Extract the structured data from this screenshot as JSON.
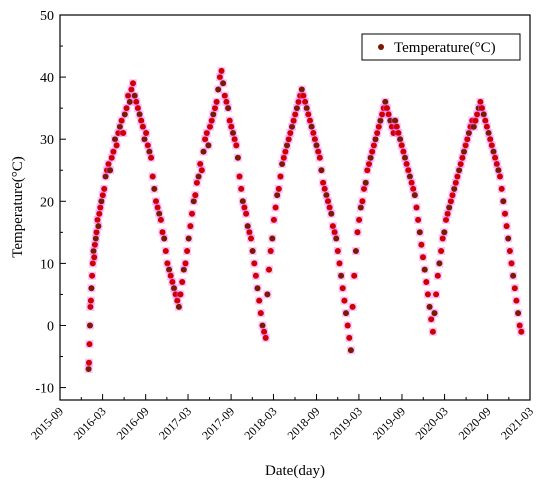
{
  "chart_data": {
    "type": "scatter",
    "xlabel": "Date(day)",
    "ylabel": "Temperature(°C)",
    "xlim": [
      "2015-09",
      "2021-03"
    ],
    "ylim": [
      -12,
      50
    ],
    "x_ticks": [
      "2015-09",
      "2016-03",
      "2016-09",
      "2017-03",
      "2017-09",
      "2018-03",
      "2018-09",
      "2019-03",
      "2019-09",
      "2020-03",
      "2020-09",
      "2021-03"
    ],
    "y_ticks": [
      -10,
      0,
      10,
      20,
      30,
      40,
      50
    ],
    "grid": false,
    "legend_position": "top-right",
    "colors": {
      "outer": "#ff66ff",
      "point": "#cc0000",
      "point_dark": "#7a1a00"
    },
    "series": [
      {
        "name": "Temperature(°C)",
        "points": [
          [
            "2016-01-01",
            -7
          ],
          [
            "2016-01-03",
            -6
          ],
          [
            "2016-01-05",
            -3
          ],
          [
            "2016-01-07",
            0
          ],
          [
            "2016-01-09",
            3
          ],
          [
            "2016-01-11",
            4
          ],
          [
            "2016-01-13",
            6
          ],
          [
            "2016-01-16",
            8
          ],
          [
            "2016-01-19",
            10
          ],
          [
            "2016-01-22",
            12
          ],
          [
            "2016-01-25",
            11
          ],
          [
            "2016-01-28",
            13
          ],
          [
            "2016-02-01",
            14
          ],
          [
            "2016-02-04",
            15
          ],
          [
            "2016-02-08",
            17
          ],
          [
            "2016-02-12",
            16
          ],
          [
            "2016-02-16",
            18
          ],
          [
            "2016-02-20",
            19
          ],
          [
            "2016-02-25",
            20
          ],
          [
            "2016-03-02",
            21
          ],
          [
            "2016-03-08",
            22
          ],
          [
            "2016-03-14",
            24
          ],
          [
            "2016-03-20",
            25
          ],
          [
            "2016-03-26",
            26
          ],
          [
            "2016-04-02",
            25
          ],
          [
            "2016-04-09",
            27
          ],
          [
            "2016-04-16",
            28
          ],
          [
            "2016-04-23",
            30
          ],
          [
            "2016-04-30",
            29
          ],
          [
            "2016-05-07",
            31
          ],
          [
            "2016-05-14",
            32
          ],
          [
            "2016-05-21",
            33
          ],
          [
            "2016-05-28",
            31
          ],
          [
            "2016-06-04",
            34
          ],
          [
            "2016-06-11",
            35
          ],
          [
            "2016-06-18",
            37
          ],
          [
            "2016-06-25",
            36
          ],
          [
            "2016-07-02",
            38
          ],
          [
            "2016-07-09",
            39
          ],
          [
            "2016-07-16",
            37
          ],
          [
            "2016-07-23",
            36
          ],
          [
            "2016-07-30",
            35
          ],
          [
            "2016-08-06",
            34
          ],
          [
            "2016-08-13",
            33
          ],
          [
            "2016-08-20",
            32
          ],
          [
            "2016-08-27",
            30
          ],
          [
            "2016-09-03",
            31
          ],
          [
            "2016-09-10",
            29
          ],
          [
            "2016-09-17",
            28
          ],
          [
            "2016-09-24",
            27
          ],
          [
            "2016-10-01",
            24
          ],
          [
            "2016-10-08",
            22
          ],
          [
            "2016-10-15",
            20
          ],
          [
            "2016-10-22",
            19
          ],
          [
            "2016-10-29",
            18
          ],
          [
            "2016-11-05",
            17
          ],
          [
            "2016-11-12",
            15
          ],
          [
            "2016-11-19",
            14
          ],
          [
            "2016-11-26",
            12
          ],
          [
            "2016-12-03",
            10
          ],
          [
            "2016-12-10",
            9
          ],
          [
            "2016-12-17",
            8
          ],
          [
            "2016-12-24",
            7
          ],
          [
            "2016-12-31",
            6
          ],
          [
            "2017-01-07",
            5
          ],
          [
            "2017-01-14",
            4
          ],
          [
            "2017-01-21",
            3
          ],
          [
            "2017-01-28",
            5
          ],
          [
            "2017-02-04",
            7
          ],
          [
            "2017-02-11",
            9
          ],
          [
            "2017-02-18",
            10
          ],
          [
            "2017-02-25",
            12
          ],
          [
            "2017-03-04",
            14
          ],
          [
            "2017-03-11",
            16
          ],
          [
            "2017-03-18",
            18
          ],
          [
            "2017-03-25",
            20
          ],
          [
            "2017-04-01",
            21
          ],
          [
            "2017-04-08",
            23
          ],
          [
            "2017-04-15",
            24
          ],
          [
            "2017-04-22",
            26
          ],
          [
            "2017-04-29",
            25
          ],
          [
            "2017-05-06",
            28
          ],
          [
            "2017-05-13",
            30
          ],
          [
            "2017-05-20",
            31
          ],
          [
            "2017-05-27",
            29
          ],
          [
            "2017-06-03",
            32
          ],
          [
            "2017-06-10",
            33
          ],
          [
            "2017-06-17",
            34
          ],
          [
            "2017-06-24",
            35
          ],
          [
            "2017-07-01",
            36
          ],
          [
            "2017-07-08",
            38
          ],
          [
            "2017-07-15",
            40
          ],
          [
            "2017-07-22",
            41
          ],
          [
            "2017-07-29",
            39
          ],
          [
            "2017-08-05",
            37
          ],
          [
            "2017-08-12",
            36
          ],
          [
            "2017-08-19",
            35
          ],
          [
            "2017-08-26",
            33
          ],
          [
            "2017-09-02",
            32
          ],
          [
            "2017-09-09",
            31
          ],
          [
            "2017-09-16",
            30
          ],
          [
            "2017-09-23",
            29
          ],
          [
            "2017-09-30",
            27
          ],
          [
            "2017-10-07",
            24
          ],
          [
            "2017-10-14",
            22
          ],
          [
            "2017-10-21",
            20
          ],
          [
            "2017-10-28",
            19
          ],
          [
            "2017-11-04",
            18
          ],
          [
            "2017-11-11",
            16
          ],
          [
            "2017-11-18",
            15
          ],
          [
            "2017-11-25",
            14
          ],
          [
            "2017-12-02",
            12
          ],
          [
            "2017-12-09",
            10
          ],
          [
            "2017-12-16",
            8
          ],
          [
            "2017-12-23",
            6
          ],
          [
            "2017-12-30",
            4
          ],
          [
            "2018-01-06",
            2
          ],
          [
            "2018-01-13",
            0
          ],
          [
            "2018-01-20",
            -1
          ],
          [
            "2018-01-27",
            -2
          ],
          [
            "2018-02-03",
            5
          ],
          [
            "2018-02-10",
            9
          ],
          [
            "2018-02-17",
            12
          ],
          [
            "2018-02-24",
            14
          ],
          [
            "2018-03-03",
            17
          ],
          [
            "2018-03-10",
            19
          ],
          [
            "2018-03-17",
            21
          ],
          [
            "2018-03-24",
            22
          ],
          [
            "2018-03-31",
            24
          ],
          [
            "2018-04-07",
            26
          ],
          [
            "2018-04-14",
            27
          ],
          [
            "2018-04-21",
            28
          ],
          [
            "2018-04-28",
            29
          ],
          [
            "2018-05-05",
            30
          ],
          [
            "2018-05-12",
            31
          ],
          [
            "2018-05-19",
            32
          ],
          [
            "2018-05-26",
            33
          ],
          [
            "2018-06-02",
            34
          ],
          [
            "2018-06-09",
            35
          ],
          [
            "2018-06-16",
            36
          ],
          [
            "2018-06-23",
            37
          ],
          [
            "2018-06-30",
            38
          ],
          [
            "2018-07-07",
            37
          ],
          [
            "2018-07-14",
            36
          ],
          [
            "2018-07-21",
            35
          ],
          [
            "2018-07-28",
            34
          ],
          [
            "2018-08-04",
            33
          ],
          [
            "2018-08-11",
            32
          ],
          [
            "2018-08-18",
            31
          ],
          [
            "2018-08-25",
            30
          ],
          [
            "2018-09-01",
            29
          ],
          [
            "2018-09-08",
            28
          ],
          [
            "2018-09-15",
            27
          ],
          [
            "2018-09-22",
            25
          ],
          [
            "2018-09-29",
            23
          ],
          [
            "2018-10-06",
            22
          ],
          [
            "2018-10-13",
            21
          ],
          [
            "2018-10-20",
            20
          ],
          [
            "2018-10-27",
            19
          ],
          [
            "2018-11-03",
            18
          ],
          [
            "2018-11-10",
            16
          ],
          [
            "2018-11-17",
            15
          ],
          [
            "2018-11-24",
            14
          ],
          [
            "2018-12-01",
            12
          ],
          [
            "2018-12-08",
            10
          ],
          [
            "2018-12-15",
            8
          ],
          [
            "2018-12-22",
            6
          ],
          [
            "2018-12-29",
            4
          ],
          [
            "2019-01-05",
            2
          ],
          [
            "2019-01-12",
            0
          ],
          [
            "2019-01-19",
            -2
          ],
          [
            "2019-01-26",
            -4
          ],
          [
            "2019-02-02",
            3
          ],
          [
            "2019-02-09",
            8
          ],
          [
            "2019-02-16",
            12
          ],
          [
            "2019-02-23",
            15
          ],
          [
            "2019-03-02",
            17
          ],
          [
            "2019-03-09",
            19
          ],
          [
            "2019-03-16",
            20
          ],
          [
            "2019-03-23",
            22
          ],
          [
            "2019-03-30",
            23
          ],
          [
            "2019-04-06",
            25
          ],
          [
            "2019-04-13",
            26
          ],
          [
            "2019-04-20",
            27
          ],
          [
            "2019-04-27",
            28
          ],
          [
            "2019-05-04",
            29
          ],
          [
            "2019-05-11",
            30
          ],
          [
            "2019-05-18",
            31
          ],
          [
            "2019-05-25",
            32
          ],
          [
            "2019-06-01",
            33
          ],
          [
            "2019-06-08",
            34
          ],
          [
            "2019-06-15",
            35
          ],
          [
            "2019-06-22",
            36
          ],
          [
            "2019-06-29",
            35
          ],
          [
            "2019-07-06",
            34
          ],
          [
            "2019-07-13",
            33
          ],
          [
            "2019-07-20",
            32
          ],
          [
            "2019-07-27",
            31
          ],
          [
            "2019-08-03",
            33
          ],
          [
            "2019-08-10",
            32
          ],
          [
            "2019-08-17",
            31
          ],
          [
            "2019-08-24",
            30
          ],
          [
            "2019-08-31",
            29
          ],
          [
            "2019-09-07",
            28
          ],
          [
            "2019-09-14",
            27
          ],
          [
            "2019-09-21",
            26
          ],
          [
            "2019-09-28",
            25
          ],
          [
            "2019-10-05",
            24
          ],
          [
            "2019-10-12",
            23
          ],
          [
            "2019-10-19",
            22
          ],
          [
            "2019-10-26",
            21
          ],
          [
            "2019-11-02",
            19
          ],
          [
            "2019-11-09",
            17
          ],
          [
            "2019-11-16",
            15
          ],
          [
            "2019-11-23",
            13
          ],
          [
            "2019-11-30",
            11
          ],
          [
            "2019-12-07",
            9
          ],
          [
            "2019-12-14",
            7
          ],
          [
            "2019-12-21",
            5
          ],
          [
            "2019-12-28",
            3
          ],
          [
            "2020-01-04",
            1
          ],
          [
            "2020-01-11",
            -1
          ],
          [
            "2020-01-18",
            2
          ],
          [
            "2020-01-25",
            5
          ],
          [
            "2020-02-01",
            8
          ],
          [
            "2020-02-08",
            10
          ],
          [
            "2020-02-15",
            12
          ],
          [
            "2020-02-22",
            14
          ],
          [
            "2020-02-29",
            15
          ],
          [
            "2020-03-07",
            17
          ],
          [
            "2020-03-14",
            18
          ],
          [
            "2020-03-21",
            19
          ],
          [
            "2020-03-28",
            20
          ],
          [
            "2020-04-04",
            21
          ],
          [
            "2020-04-11",
            22
          ],
          [
            "2020-04-18",
            23
          ],
          [
            "2020-04-25",
            24
          ],
          [
            "2020-05-02",
            25
          ],
          [
            "2020-05-09",
            26
          ],
          [
            "2020-05-16",
            27
          ],
          [
            "2020-05-23",
            28
          ],
          [
            "2020-05-30",
            29
          ],
          [
            "2020-06-06",
            30
          ],
          [
            "2020-06-13",
            31
          ],
          [
            "2020-06-20",
            32
          ],
          [
            "2020-06-27",
            33
          ],
          [
            "2020-07-04",
            32
          ],
          [
            "2020-07-11",
            33
          ],
          [
            "2020-07-18",
            34
          ],
          [
            "2020-07-25",
            35
          ],
          [
            "2020-08-01",
            36
          ],
          [
            "2020-08-08",
            35
          ],
          [
            "2020-08-15",
            34
          ],
          [
            "2020-08-22",
            33
          ],
          [
            "2020-08-29",
            32
          ],
          [
            "2020-09-05",
            31
          ],
          [
            "2020-09-12",
            30
          ],
          [
            "2020-09-19",
            29
          ],
          [
            "2020-09-26",
            28
          ],
          [
            "2020-10-03",
            27
          ],
          [
            "2020-10-10",
            26
          ],
          [
            "2020-10-17",
            25
          ],
          [
            "2020-10-24",
            24
          ],
          [
            "2020-10-31",
            22
          ],
          [
            "2020-11-07",
            20
          ],
          [
            "2020-11-14",
            18
          ],
          [
            "2020-11-21",
            16
          ],
          [
            "2020-11-28",
            14
          ],
          [
            "2020-12-05",
            12
          ],
          [
            "2020-12-12",
            10
          ],
          [
            "2020-12-19",
            8
          ],
          [
            "2020-12-26",
            6
          ],
          [
            "2021-01-02",
            4
          ],
          [
            "2021-01-09",
            2
          ],
          [
            "2021-01-16",
            0
          ],
          [
            "2021-01-23",
            -1
          ]
        ]
      }
    ]
  }
}
